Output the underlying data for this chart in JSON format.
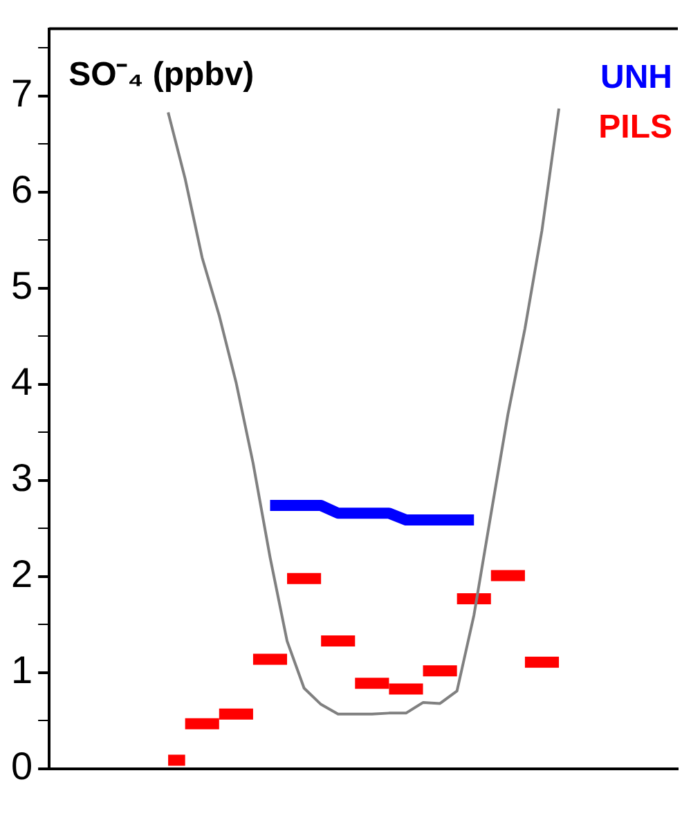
{
  "chart_data": {
    "type": "line",
    "title": "SO⁻₄ (ppbv)",
    "categories": [
      null,
      null,
      null,
      null,
      null,
      null,
      null,
      null,
      null,
      null,
      null,
      null,
      null,
      null,
      null,
      null,
      null,
      null,
      null,
      null,
      null,
      null,
      null,
      null,
      null,
      null,
      null,
      null,
      null,
      null,
      null,
      null,
      null,
      null,
      null,
      null,
      null,
      null
    ],
    "ylim": [
      0,
      7.7
    ],
    "yticks": [
      0,
      {
        "value": 0.5,
        "label": null
      },
      1,
      {
        "value": 1.5,
        "label": null
      },
      2,
      {
        "value": 2.5,
        "label": null
      },
      3,
      {
        "value": 3.5,
        "label": null
      },
      4,
      {
        "value": 4.5,
        "label": null
      },
      5,
      {
        "value": 5.5,
        "label": null
      },
      6,
      {
        "value": 6.5,
        "label": null
      },
      7,
      {
        "value": 7.5,
        "label": null
      }
    ],
    "grid": false,
    "marker": "none",
    "line_style": "solid",
    "series": [
      {
        "color": "#808080",
        "values": [
          null,
          null,
          null,
          null,
          null,
          null,
          null,
          6.83,
          6.14,
          5.32,
          4.72,
          4.02,
          3.18,
          2.2,
          1.33,
          0.84,
          0.67,
          0.57,
          0.57,
          0.57,
          0.58,
          0.58,
          0.69,
          0.68,
          0.81,
          1.6,
          2.65,
          3.69,
          4.58,
          5.6,
          6.87,
          null,
          null,
          null,
          null,
          null,
          null,
          null
        ]
      },
      {
        "name": "UNH",
        "color": "#0000ff",
        "values": [
          null,
          null,
          null,
          null,
          null,
          null,
          null,
          null,
          null,
          null,
          null,
          null,
          null,
          2.74,
          2.74,
          2.74,
          2.74,
          2.66,
          2.66,
          2.66,
          2.66,
          2.59,
          2.59,
          2.59,
          2.59,
          2.59,
          null,
          null,
          null,
          null,
          null,
          null,
          null,
          null,
          null,
          null,
          null,
          null
        ]
      },
      {
        "name": "PILS",
        "color": "#ff0000",
        "values": [
          null,
          null,
          null,
          null,
          null,
          null,
          null,
          0.09,
          0.09,
          null,
          0.57,
          0.57,
          0.57,
          null,
          1.98,
          1.98,
          1.98,
          null,
          0.89,
          0.89,
          0.89,
          null,
          1.02,
          1.02,
          1.02,
          null,
          2.01,
          2.01,
          2.01,
          null,
          null,
          null,
          null,
          null,
          null,
          null,
          null,
          null
        ]
      },
      {
        "color": "#ff0000",
        "values": [
          null,
          null,
          null,
          null,
          null,
          null,
          null,
          null,
          0.47,
          0.47,
          0.47,
          null,
          1.14,
          1.14,
          1.14,
          null,
          1.33,
          1.33,
          1.33,
          null,
          0.83,
          0.83,
          0.83,
          null,
          1.77,
          1.77,
          1.77,
          null,
          1.11,
          1.11,
          1.11,
          null,
          null,
          null,
          null,
          null,
          null,
          null
        ]
      }
    ]
  }
}
